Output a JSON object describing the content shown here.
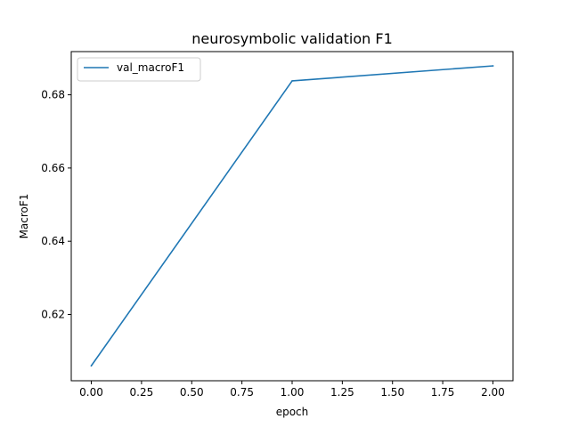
{
  "chart_data": {
    "type": "line",
    "title": "neurosymbolic validation F1",
    "xlabel": "epoch",
    "ylabel": "MacroF1",
    "x": [
      0,
      1,
      2
    ],
    "series": [
      {
        "name": "val_macroF1",
        "values": [
          0.606,
          0.6838,
          0.6879
        ],
        "color": "#1f77b4"
      }
    ],
    "xlim": [
      -0.1,
      2.1
    ],
    "ylim": [
      0.6019,
      0.6918
    ],
    "xticks": [
      0.0,
      0.25,
      0.5,
      0.75,
      1.0,
      1.25,
      1.5,
      1.75,
      2.0
    ],
    "xtick_labels": [
      "0.00",
      "0.25",
      "0.50",
      "0.75",
      "1.00",
      "1.25",
      "1.50",
      "1.75",
      "2.00"
    ],
    "yticks": [
      0.62,
      0.64,
      0.66,
      0.68
    ],
    "ytick_labels": [
      "0.62",
      "0.64",
      "0.66",
      "0.68"
    ],
    "grid": false,
    "legend_position": "top-left"
  }
}
